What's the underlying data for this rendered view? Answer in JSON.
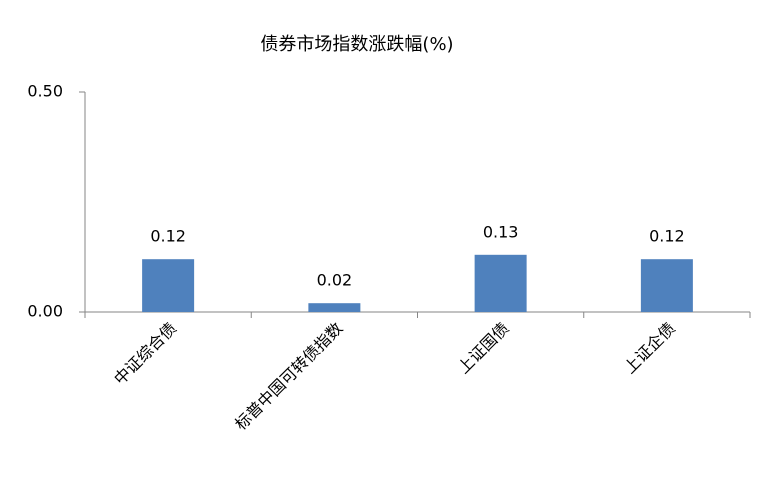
{
  "chart_data": {
    "type": "bar",
    "title": "债券市场指数涨跌幅(%)",
    "categories": [
      "中证综合债",
      "标普中国可转债指数",
      "上证国债",
      "上证企债"
    ],
    "values": [
      0.12,
      0.02,
      0.13,
      0.12
    ],
    "color": "#4f81bd",
    "ylim": [
      0,
      0.5
    ],
    "yticks": [
      {
        "value": 0,
        "label": "0.00"
      },
      {
        "value": 0.5,
        "label": "0.50"
      }
    ],
    "grid": false
  }
}
